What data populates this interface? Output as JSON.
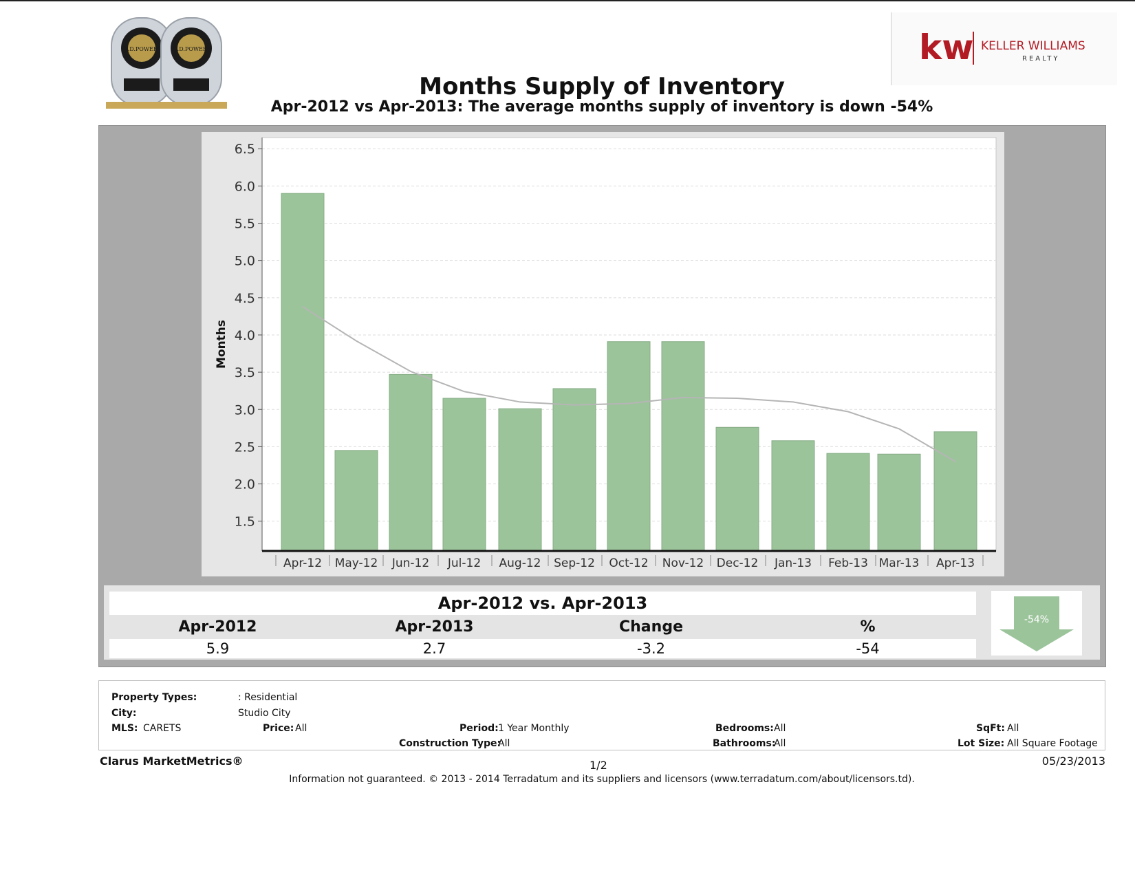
{
  "header": {
    "title": "Months Supply of Inventory",
    "subtitle": "Apr-2012 vs Apr-2013: The average months supply of inventory is down -54%",
    "brand_mark": "kw",
    "brand_name": "KELLER WILLIAMS",
    "brand_sub": "REALTY",
    "award_text": "J.D.POWER",
    "brand_color": "#b31b24"
  },
  "chart_data": {
    "type": "bar",
    "ylabel": "Months",
    "categories": [
      "Apr-12",
      "May-12",
      "Jun-12",
      "Jul-12",
      "Aug-12",
      "Sep-12",
      "Oct-12",
      "Nov-12",
      "Dec-12",
      "Jan-13",
      "Feb-13",
      "Mar-13",
      "Apr-13"
    ],
    "values": [
      5.9,
      2.45,
      3.47,
      3.15,
      3.01,
      3.28,
      3.91,
      3.91,
      2.76,
      2.58,
      2.41,
      2.4,
      2.7
    ],
    "trend": [
      4.38,
      3.92,
      3.51,
      3.24,
      3.1,
      3.06,
      3.08,
      3.16,
      3.15,
      3.1,
      2.97,
      2.74,
      2.3
    ],
    "ylim": [
      1.1,
      6.65
    ],
    "yticks": [
      "1.5",
      "2.0",
      "2.5",
      "3.0",
      "3.5",
      "4.0",
      "4.5",
      "5.0",
      "5.5",
      "6.0",
      "6.5"
    ],
    "bar_color": "#9cc49b",
    "grid": true
  },
  "summary": {
    "title": "Apr-2012 vs. Apr-2013",
    "headers": [
      "Apr-2012",
      "Apr-2013",
      "Change",
      "%"
    ],
    "values": [
      "5.9",
      "2.7",
      "-3.2",
      "-54"
    ],
    "badge": "-54%"
  },
  "info": {
    "property_types_label": "Property Types:",
    "property_types_value": ": Residential",
    "city_label": "City:",
    "city_value": "Studio City",
    "mls_label": "MLS:",
    "mls_value": "CARETS",
    "price_label": "Price:",
    "price_value": "All",
    "period_label": "Period:",
    "period_value": "1 Year Monthly",
    "construction_label": "Construction Type:",
    "construction_value": "All",
    "bedrooms_label": "Bedrooms:",
    "bedrooms_value": "All",
    "bathrooms_label": "Bathrooms:",
    "bathrooms_value": "All",
    "sqft_label": "SqFt:",
    "sqft_value": "All",
    "lot_label": "Lot Size:",
    "lot_value": "All Square Footage"
  },
  "footer": {
    "brand": "Clarus MarketMetrics®",
    "page": "1/2",
    "date": "05/23/2013",
    "note": "Information not guaranteed. © 2013 - 2014 Terradatum and its suppliers and licensors (www.terradatum.com/about/licensors.td)."
  }
}
